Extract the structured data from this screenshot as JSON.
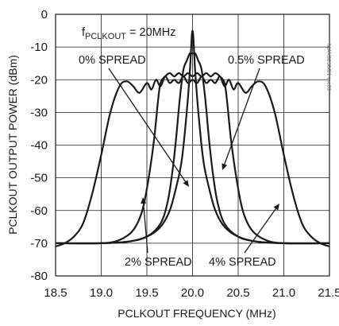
{
  "chart_data": {
    "type": "line",
    "xlabel": "PCLKOUT FREQUENCY (MHz)",
    "ylabel": "PCLKOUT OUTPUT POWER (dBm)",
    "xlim": [
      18.5,
      21.5
    ],
    "ylim": [
      -80,
      0
    ],
    "x_ticks": [
      "18.5",
      "19.0",
      "19.5",
      "20.0",
      "20.5",
      "21.0",
      "21.5"
    ],
    "y_ticks": [
      "0",
      "-10",
      "-20",
      "-30",
      "-40",
      "-50",
      "-60",
      "-70",
      "-80"
    ],
    "grid": true,
    "watermark": "MAX9250/01 toc09",
    "annotations": {
      "freq_prefix": "f",
      "freq_subscript": "PCLKOUT",
      "freq_value": " = 20MHz",
      "spread_0": "0% SPREAD",
      "spread_05": "0.5% SPREAD",
      "spread_2": "2% SPREAD",
      "spread_4": "4% SPREAD"
    },
    "series": [
      {
        "x": [
          18.5,
          19.0,
          19.3,
          19.5,
          19.65,
          19.75,
          19.82,
          19.88,
          19.93,
          19.97,
          20.0,
          20.03,
          20.07,
          20.12,
          20.18,
          20.25,
          20.35,
          20.5,
          20.7,
          21.0,
          21.5
        ],
        "y": [
          -70,
          -70,
          -69.5,
          -68,
          -65,
          -60,
          -53,
          -45,
          -32,
          -18,
          -5,
          -18,
          -32,
          -45,
          -53,
          -60,
          -65,
          -68,
          -69.5,
          -70,
          -70
        ]
      },
      {
        "x": [
          18.5,
          19.0,
          19.3,
          19.5,
          19.65,
          19.73,
          19.78,
          19.82,
          19.86,
          19.9,
          19.94,
          19.97,
          20.0,
          20.03,
          20.06,
          20.1,
          20.14,
          20.18,
          20.22,
          20.27,
          20.35,
          20.5,
          20.7,
          21.0,
          21.5
        ],
        "y": [
          -70,
          -70,
          -69.5,
          -68,
          -64,
          -57,
          -48,
          -38,
          -26,
          -17,
          -14,
          -12,
          -12,
          -12,
          -14,
          -17,
          -26,
          -38,
          -48,
          -57,
          -64,
          -68,
          -69.5,
          -70,
          -70
        ]
      },
      {
        "x": [
          18.5,
          19.0,
          19.2,
          19.35,
          19.45,
          19.52,
          19.58,
          19.62,
          19.65,
          19.7,
          19.75,
          19.8,
          19.85,
          19.9,
          19.95,
          20.0,
          20.05,
          20.1,
          20.15,
          20.2,
          20.25,
          20.3,
          20.35,
          20.38,
          20.42,
          20.48,
          20.55,
          20.65,
          20.8,
          21.0,
          21.5
        ],
        "y": [
          -70,
          -70,
          -69,
          -66,
          -60,
          -50,
          -38,
          -27,
          -21,
          -19,
          -18,
          -19,
          -18,
          -19,
          -18,
          -19,
          -18,
          -19,
          -18,
          -19,
          -18,
          -19,
          -21,
          -27,
          -38,
          -50,
          -60,
          -66,
          -69,
          -70,
          -70
        ]
      },
      {
        "x": [
          18.5,
          18.6,
          18.7,
          18.8,
          18.9,
          19.0,
          19.1,
          19.2,
          19.28,
          19.35,
          19.42,
          19.5,
          19.55,
          19.6,
          19.65,
          19.7,
          19.75,
          19.8,
          19.85,
          19.9,
          19.95,
          20.0,
          20.05,
          20.1,
          20.15,
          20.2,
          20.25,
          20.3,
          20.35,
          20.4,
          20.45,
          20.5,
          20.58,
          20.65,
          20.72,
          20.8,
          20.9,
          21.0,
          21.1,
          21.2,
          21.3,
          21.4,
          21.5
        ],
        "y": [
          -71,
          -70,
          -68,
          -64,
          -55,
          -43,
          -30,
          -22,
          -20.5,
          -22,
          -24,
          -21,
          -23,
          -20,
          -22,
          -19,
          -21,
          -20,
          -21,
          -19,
          -21,
          -20,
          -21,
          -19,
          -21,
          -20,
          -21,
          -19,
          -22,
          -20,
          -23,
          -21,
          -24,
          -22,
          -20.5,
          -22,
          -30,
          -43,
          -55,
          -64,
          -68,
          -70,
          -71
        ]
      }
    ]
  }
}
